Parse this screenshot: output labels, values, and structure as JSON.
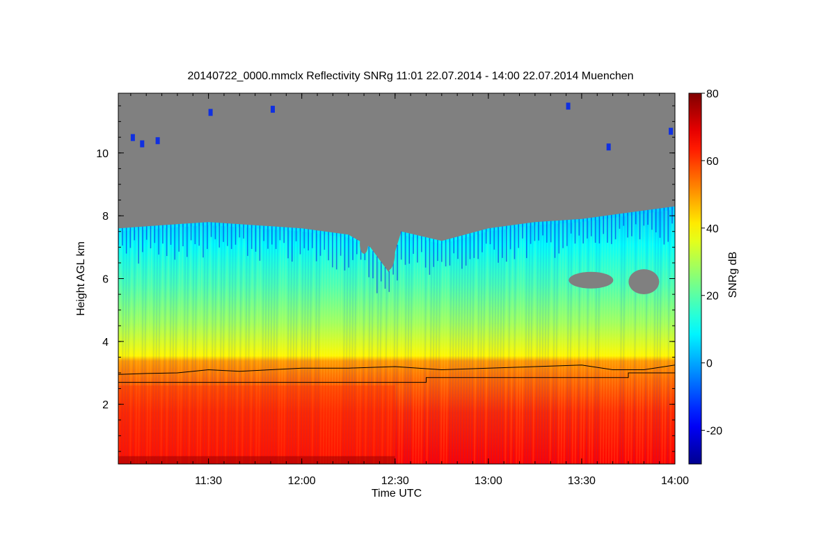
{
  "chart_data": {
    "type": "heatmap",
    "title": "20140722_0000.mmclx Reflectivity SNRg   11:01 22.07.2014 - 14:00 22.07.2014 Muenchen",
    "xlabel": "Time UTC",
    "ylabel": "Height AGL km",
    "x_unit": "UTC time (HH:MM)",
    "xlim": [
      "11:01",
      "14:00"
    ],
    "ylim": [
      0.1,
      11.9
    ],
    "x_ticks": [
      "11:30",
      "12:00",
      "12:30",
      "13:00",
      "13:30",
      "14:00"
    ],
    "y_ticks": [
      2,
      4,
      6,
      8,
      10
    ],
    "colorbar": {
      "label": "SNRg dB",
      "range": [
        -30,
        80
      ],
      "ticks": [
        -20,
        0,
        20,
        40,
        60,
        80
      ],
      "colormap": "jet",
      "stops": [
        "#00008f",
        "#0000ff",
        "#00ffff",
        "#ffff00",
        "#ff0000",
        "#800000"
      ]
    },
    "no_signal_color": "#808080",
    "cloud_top_km": [
      [
        "11:01",
        7.6
      ],
      [
        "11:15",
        7.7
      ],
      [
        "11:30",
        7.8
      ],
      [
        "11:45",
        7.7
      ],
      [
        "12:00",
        7.6
      ],
      [
        "12:15",
        7.4
      ],
      [
        "12:22",
        7.0
      ],
      [
        "12:28",
        6.2
      ],
      [
        "12:32",
        7.5
      ],
      [
        "12:45",
        7.2
      ],
      [
        "13:00",
        7.6
      ],
      [
        "13:15",
        7.8
      ],
      [
        "13:30",
        7.9
      ],
      [
        "13:45",
        8.1
      ],
      [
        "14:00",
        8.3
      ]
    ],
    "series": [
      {
        "points": [
          [
            "11:01",
            2.95
          ],
          [
            "11:10",
            2.98
          ],
          [
            "11:20",
            3.0
          ],
          [
            "11:30",
            3.1
          ],
          [
            "11:40",
            3.05
          ],
          [
            "11:50",
            3.1
          ],
          [
            "12:00",
            3.15
          ],
          [
            "12:15",
            3.15
          ],
          [
            "12:30",
            3.2
          ],
          [
            "12:45",
            3.1
          ],
          [
            "13:00",
            3.15
          ],
          [
            "13:15",
            3.2
          ],
          [
            "13:30",
            3.25
          ],
          [
            "13:40",
            3.1
          ],
          [
            "13:50",
            3.1
          ],
          [
            "14:00",
            3.25
          ]
        ]
      },
      {
        "points": [
          [
            "11:01",
            2.7
          ],
          [
            "12:40",
            2.7
          ],
          [
            "12:40",
            2.85
          ],
          [
            "13:45",
            2.85
          ],
          [
            "13:45",
            3.0
          ],
          [
            "14:00",
            3.0
          ]
        ]
      }
    ]
  }
}
